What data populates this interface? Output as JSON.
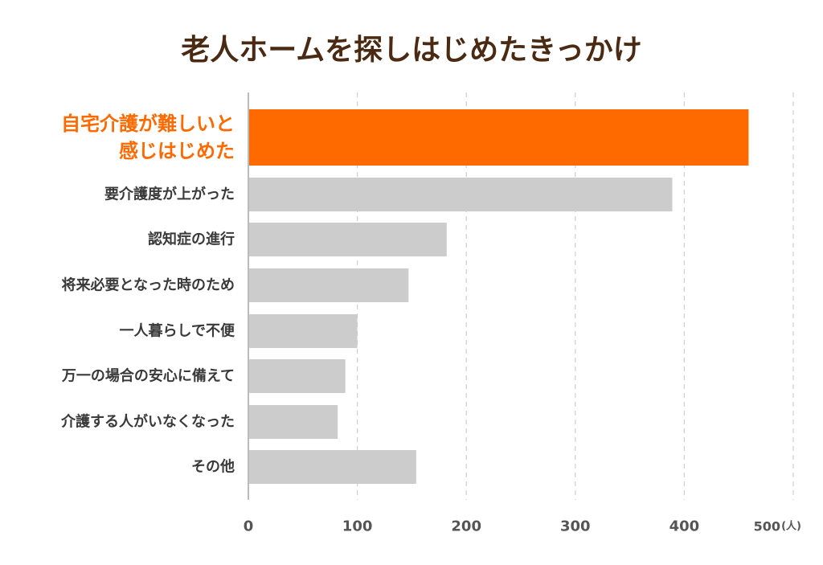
{
  "chart_data": {
    "type": "bar",
    "orientation": "horizontal",
    "title": "老人ホームを探しはじめたきっかけ",
    "categories": [
      [
        "自宅介護が難しいと",
        "感じはじめた"
      ],
      [
        "要介護度が上がった"
      ],
      [
        "認知症の進行"
      ],
      [
        "将来必要となった時のため"
      ],
      [
        "一人暮らしで不便"
      ],
      [
        "万一の場合の安心に備えて"
      ],
      [
        "介護する人がいなくなった"
      ],
      [
        "その他"
      ]
    ],
    "values": [
      459,
      389,
      182,
      147,
      100,
      89,
      82,
      154
    ],
    "highlight_index": 0,
    "xlim": [
      0,
      500
    ],
    "xticks": [
      "0",
      "100",
      "200",
      "300",
      "400",
      "500"
    ],
    "x_unit": "(人)",
    "grid": "vertical-dashed",
    "colors": {
      "highlight": "#ff6a00",
      "bar": "#cccccc",
      "title": "#4a2a12",
      "label": "#3a3a3a",
      "tick": "#555555",
      "grid": "#cfcfcf",
      "axis": "#bbbbbb"
    }
  }
}
